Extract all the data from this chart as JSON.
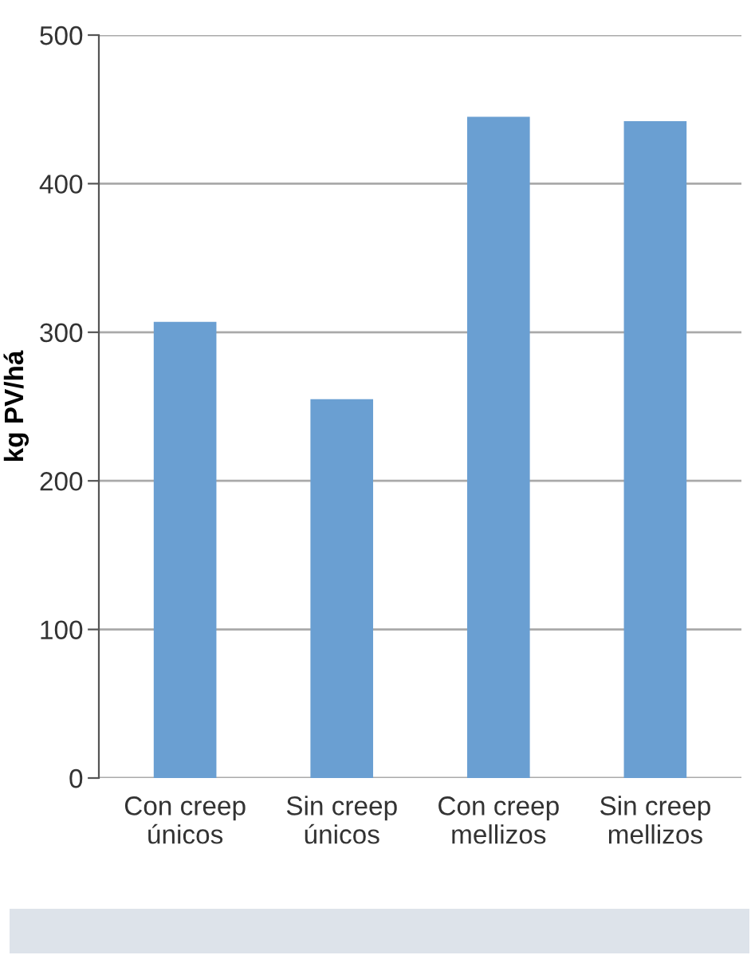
{
  "chart_data": {
    "type": "bar",
    "ylabel": "kg PV/há",
    "categories": [
      "Con creep\núnicos",
      "Sin creep\núnicos",
      "Con creep\nmellizos",
      "Sin creep\nmellizos"
    ],
    "values": [
      307,
      255,
      445,
      442
    ],
    "color": "#6a9fd2",
    "ylim": [
      0,
      500
    ],
    "yticks": [
      0,
      100,
      200,
      300,
      400,
      500
    ],
    "grid": "y"
  }
}
